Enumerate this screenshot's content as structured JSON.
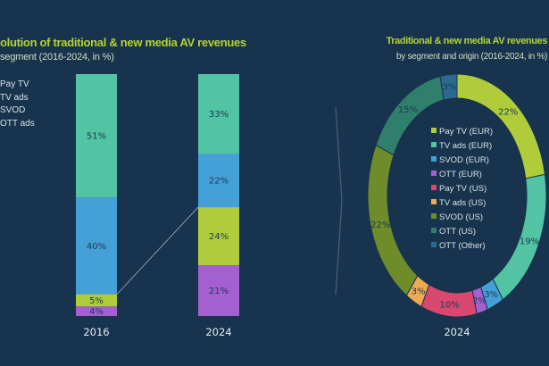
{
  "background": "#17334d",
  "chart_data": [
    {
      "type": "bar",
      "stacked": true,
      "title": "olution of traditional  & new media AV revenues",
      "subtitle": "segment (2016-2024, in %)",
      "categories": [
        "2016",
        "2024"
      ],
      "legend": [
        "Pay TV",
        "TV ads",
        "SVOD",
        "OTT ads"
      ],
      "legend_position": "left",
      "series": [
        {
          "name": "OTT ads",
          "color": "#a45fd0",
          "values": [
            4,
            21
          ],
          "labels": [
            "4%",
            "21%"
          ]
        },
        {
          "name": "Pay TV",
          "color": "#b0cc3a",
          "values": [
            5,
            24
          ],
          "labels": [
            "5%",
            "24%"
          ]
        },
        {
          "name": "SVOD",
          "color": "#45a0d8",
          "values": [
            40,
            22
          ],
          "labels": [
            "40%",
            "22%"
          ]
        },
        {
          "name": "TV ads",
          "color": "#52c3a3",
          "values": [
            51,
            33
          ],
          "labels": [
            "51%",
            "33%"
          ]
        }
      ],
      "ylim": [
        0,
        100
      ]
    },
    {
      "type": "pie",
      "donut": true,
      "title": "Traditional  & new media AV revenues",
      "subtitle": "by segment and origin (2016-2024, in %)",
      "xlabel": "2024",
      "legend_position": "center",
      "slices": [
        {
          "name": "Pay TV (EUR)",
          "value": 22,
          "label": "22%",
          "color": "#b0cc3a"
        },
        {
          "name": "TV ads (EUR)",
          "value": 19,
          "label": "19%",
          "color": "#52c3a3"
        },
        {
          "name": "SVOD (EUR)",
          "value": 3,
          "label": "3%",
          "color": "#45a0d8"
        },
        {
          "name": "OTT (EUR)",
          "value": 2,
          "label": "2%",
          "color": "#a45fd0"
        },
        {
          "name": "Pay TV (US)",
          "value": 10,
          "label": "10%",
          "color": "#d9486e"
        },
        {
          "name": "TV ads (US)",
          "value": 3,
          "label": "3%",
          "color": "#eeaa50"
        },
        {
          "name": "SVOD (US)",
          "value": 22,
          "label": "22%",
          "color": "#6e8d2a"
        },
        {
          "name": "OTT (US)",
          "value": 15,
          "label": "15%",
          "color": "#2f7f6a"
        },
        {
          "name": "OTT (Other)",
          "value": 3,
          "label": "3%",
          "color": "#2c6a8f"
        }
      ]
    }
  ]
}
